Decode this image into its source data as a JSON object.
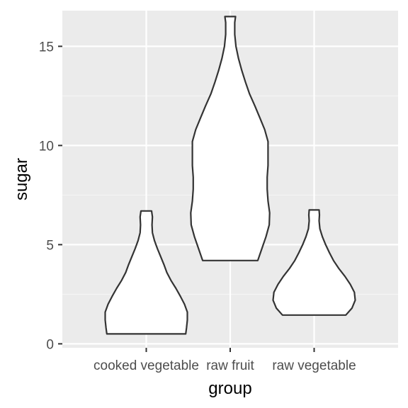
{
  "chart_data": {
    "type": "violin",
    "title": "",
    "xlabel": "group",
    "ylabel": "sugar",
    "ylim": [
      -0.2,
      16.8
    ],
    "yticks": [
      0,
      5,
      10,
      15
    ],
    "grid": true,
    "categories": [
      "cooked vegetable",
      "raw fruit",
      "raw vegetable"
    ],
    "violins": [
      {
        "category": "cooked vegetable",
        "min": 0.5,
        "max": 6.7,
        "profile": [
          [
            0.5,
            0.96
          ],
          [
            0.8,
            0.98
          ],
          [
            1.2,
            1.0
          ],
          [
            1.6,
            1.0
          ],
          [
            2.0,
            0.93
          ],
          [
            2.4,
            0.83
          ],
          [
            2.8,
            0.72
          ],
          [
            3.2,
            0.6
          ],
          [
            3.6,
            0.5
          ],
          [
            4.0,
            0.43
          ],
          [
            4.4,
            0.35
          ],
          [
            4.8,
            0.27
          ],
          [
            5.2,
            0.2
          ],
          [
            5.6,
            0.15
          ],
          [
            6.0,
            0.14
          ],
          [
            6.4,
            0.15
          ],
          [
            6.7,
            0.13
          ]
        ]
      },
      {
        "category": "raw fruit",
        "min": 4.2,
        "max": 16.5,
        "profile": [
          [
            4.2,
            0.67
          ],
          [
            4.8,
            0.77
          ],
          [
            5.4,
            0.87
          ],
          [
            6.0,
            0.95
          ],
          [
            6.6,
            0.96
          ],
          [
            7.2,
            0.92
          ],
          [
            7.8,
            0.9
          ],
          [
            8.4,
            0.9
          ],
          [
            9.0,
            0.92
          ],
          [
            9.6,
            0.92
          ],
          [
            10.2,
            0.92
          ],
          [
            10.8,
            0.84
          ],
          [
            11.4,
            0.72
          ],
          [
            12.0,
            0.6
          ],
          [
            12.6,
            0.47
          ],
          [
            13.2,
            0.37
          ],
          [
            13.8,
            0.28
          ],
          [
            14.4,
            0.2
          ],
          [
            15.0,
            0.14
          ],
          [
            15.6,
            0.11
          ],
          [
            16.2,
            0.11
          ],
          [
            16.5,
            0.13
          ]
        ]
      },
      {
        "category": "raw vegetable",
        "min": 1.45,
        "max": 6.75,
        "profile": [
          [
            1.45,
            0.77
          ],
          [
            1.8,
            0.92
          ],
          [
            2.2,
            1.0
          ],
          [
            2.6,
            0.98
          ],
          [
            3.0,
            0.88
          ],
          [
            3.4,
            0.75
          ],
          [
            3.8,
            0.6
          ],
          [
            4.2,
            0.47
          ],
          [
            4.6,
            0.37
          ],
          [
            5.0,
            0.28
          ],
          [
            5.4,
            0.2
          ],
          [
            5.8,
            0.14
          ],
          [
            6.2,
            0.12
          ],
          [
            6.5,
            0.13
          ],
          [
            6.75,
            0.12
          ]
        ]
      }
    ]
  }
}
